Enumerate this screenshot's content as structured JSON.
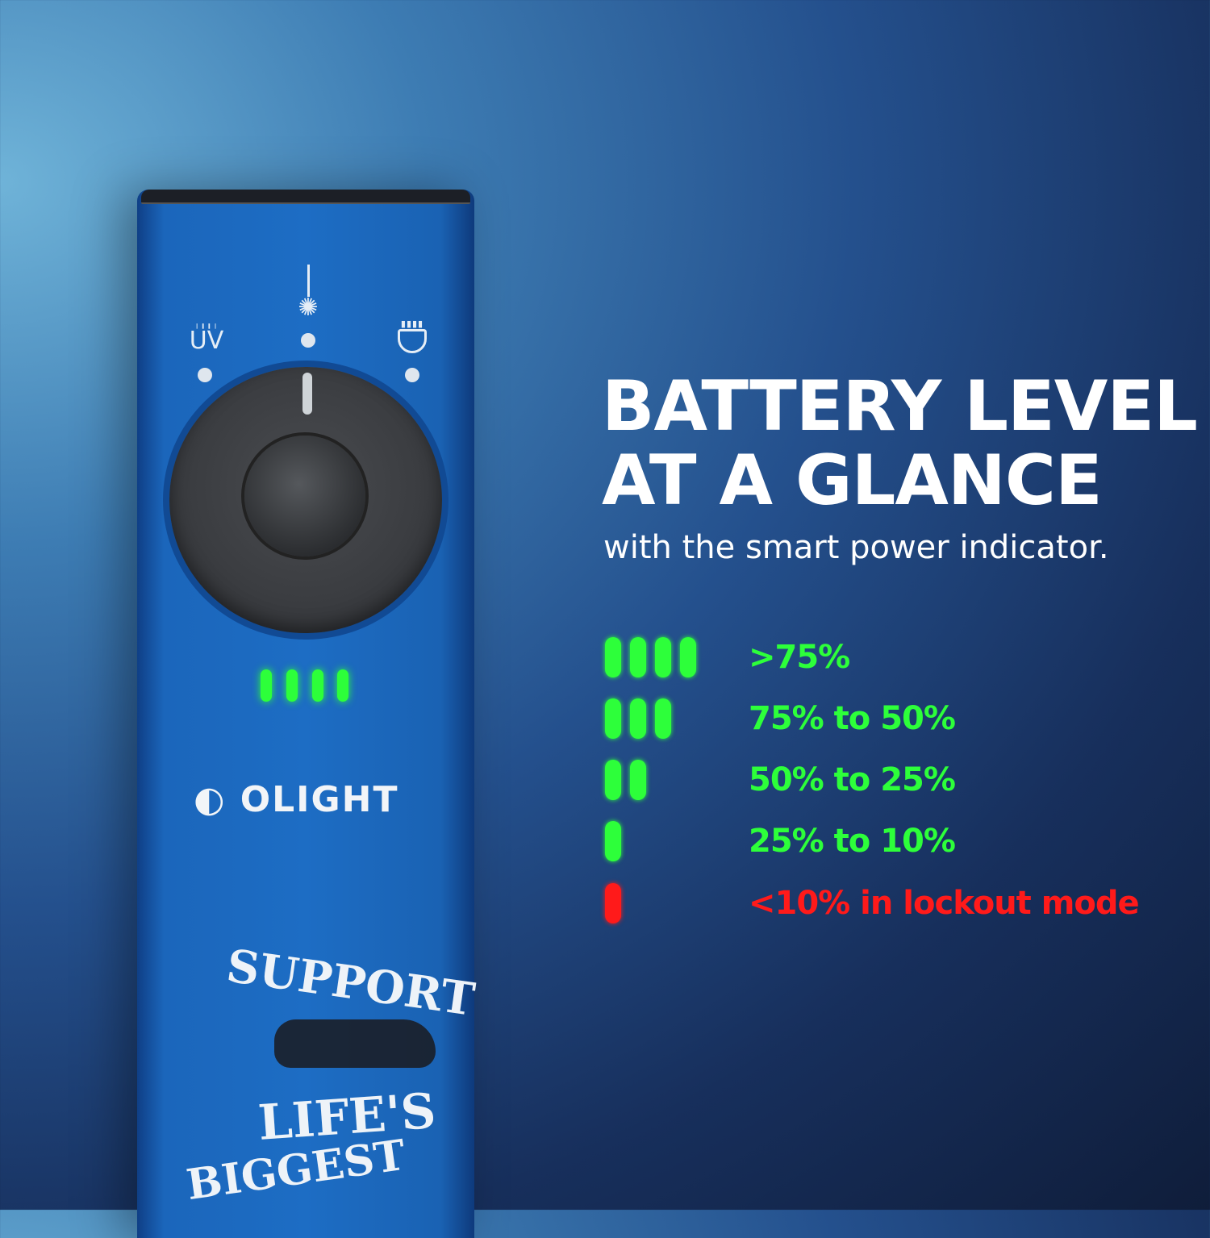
{
  "headline": {
    "line1": "BATTERY LEVEL",
    "line2": "AT A GLANCE"
  },
  "subtitle": "with the smart power indicator.",
  "product": {
    "brand_logo": "OLIGHT",
    "mode_labels": {
      "uv": "UV"
    },
    "mode_icons": [
      "uv-light-icon",
      "laser-icon",
      "flood-light-icon"
    ],
    "indicator_level_bars": 4,
    "artwork_text": [
      "SUPPORT",
      "LIFE'S",
      "BIGGEST"
    ]
  },
  "legend": [
    {
      "bars": 4,
      "color": "#2dff3a",
      "label": ">75%"
    },
    {
      "bars": 3,
      "color": "#2dff3a",
      "label": "75% to 50%"
    },
    {
      "bars": 2,
      "color": "#2dff3a",
      "label": "50% to 25%"
    },
    {
      "bars": 1,
      "color": "#2dff3a",
      "label": "25% to 10%"
    },
    {
      "bars": 1,
      "color": "#ff1a1a",
      "label": "<10% in lockout mode"
    }
  ]
}
